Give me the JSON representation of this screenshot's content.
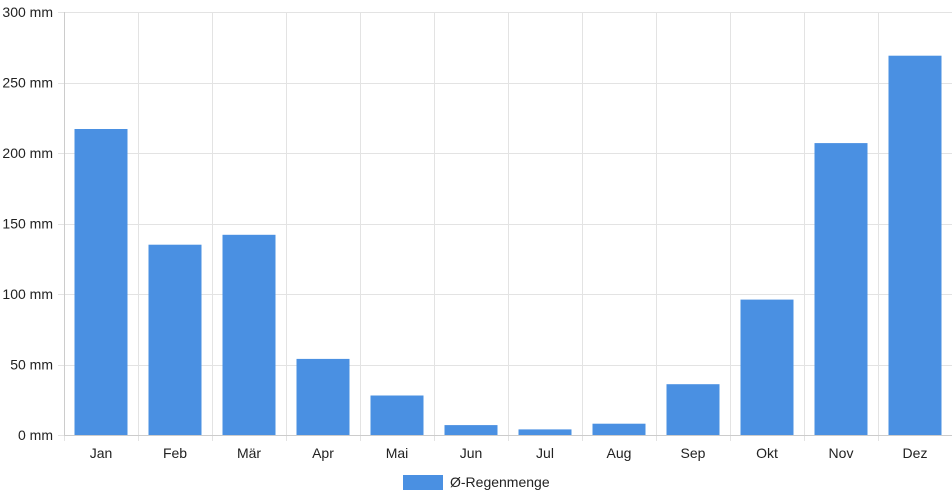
{
  "chart_data": {
    "type": "bar",
    "title": "",
    "xlabel": "",
    "ylabel": "",
    "categories": [
      "Jan",
      "Feb",
      "Mär",
      "Apr",
      "Mai",
      "Jun",
      "Jul",
      "Aug",
      "Sep",
      "Okt",
      "Nov",
      "Dez"
    ],
    "series": [
      {
        "name": "Ø-Regenmenge",
        "color": "#4a90e2",
        "values": [
          217,
          135,
          142,
          54,
          28,
          7,
          4,
          8,
          36,
          96,
          207,
          269
        ]
      }
    ],
    "ylim": [
      0,
      300
    ],
    "y_ticks": [
      "0 mm",
      "50 mm",
      "100 mm",
      "150 mm",
      "200 mm",
      "250 mm",
      "300 mm"
    ],
    "y_tick_values": [
      0,
      50,
      100,
      150,
      200,
      250,
      300
    ],
    "grid": true,
    "legend_position": "bottom"
  }
}
